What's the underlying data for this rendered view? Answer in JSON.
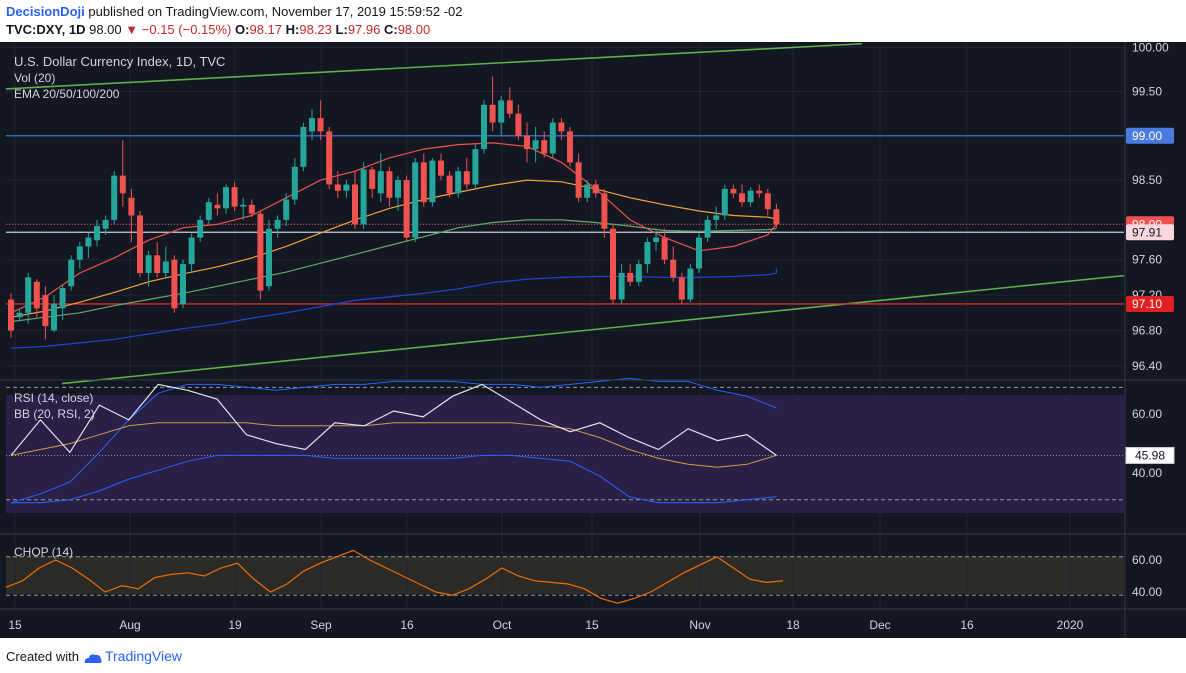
{
  "header": {
    "brand": "DecisionDoji",
    "published": "published on TradingView.com, November 17, 2019 15:59:52 -02",
    "symbol": "TVC:DXY, 1D",
    "last": "98.00",
    "change": "−0.15 (−0.15%)",
    "o_label": "O:",
    "o_value": "98.17",
    "h_label": "H:",
    "h_value": "98.23",
    "l_label": "L:",
    "l_value": "97.96",
    "c_label": "C:",
    "c_value": "98.00"
  },
  "legends": {
    "main": [
      "U.S. Dollar Currency Index, 1D, TVC",
      "Vol (20)",
      "EMA 20/50/100/200"
    ],
    "rsi": [
      "RSI (14, close)",
      "BB (20, RSI, 2)"
    ],
    "chop": [
      "CHOP (14)"
    ]
  },
  "footer": {
    "created_with": "Created with",
    "brand": "TradingView"
  },
  "colors": {
    "background": "#131722",
    "up": "#26a69a",
    "down": "#ef5350",
    "ema20": "#ef5350",
    "ema50": "#f2a33a",
    "ema100": "#64a86a",
    "ema200": "#2443d8",
    "trendline": "#5fb04c",
    "rsi": "#e0e3eb",
    "bb": "#2962ff",
    "bb_basis": "#c8a048",
    "chop": "#ef6c00",
    "price_line": "#4a7be0",
    "support": "#d32f2f"
  },
  "chart_data": [
    {
      "type": "candlestick",
      "title": "U.S. Dollar Currency Index, 1D, TVC",
      "x_ticks": [
        "15",
        "Aug",
        "19",
        "Sep",
        "16",
        "Oct",
        "15",
        "Nov",
        "18",
        "Dec",
        "16",
        "2020"
      ],
      "y_ticks": [
        "100.00",
        "99.50",
        "99.00",
        "98.50",
        "98.00",
        "97.60",
        "97.20",
        "96.80",
        "96.40"
      ],
      "ylim": [
        96.2,
        100.1
      ],
      "price_labels": [
        {
          "text": "99.00",
          "value": 99.0,
          "kind": "line"
        },
        {
          "text": "98.00",
          "value": 98.0,
          "kind": "current"
        },
        {
          "text": "97.91",
          "value": 97.91,
          "kind": "marker"
        },
        {
          "text": "97.10",
          "value": 97.1,
          "kind": "support"
        }
      ],
      "ohlc": [
        {
          "date": "2019-07-15",
          "o": 97.15,
          "h": 97.22,
          "l": 96.72,
          "c": 96.8
        },
        {
          "date": "2019-07-16",
          "o": 96.95,
          "h": 97.05,
          "l": 96.9,
          "c": 97.0
        },
        {
          "date": "2019-07-17",
          "o": 97.0,
          "h": 97.45,
          "l": 96.88,
          "c": 97.4
        },
        {
          "date": "2019-07-18",
          "o": 97.35,
          "h": 97.38,
          "l": 96.95,
          "c": 97.05
        },
        {
          "date": "2019-07-19",
          "o": 97.2,
          "h": 97.3,
          "l": 96.7,
          "c": 96.85
        },
        {
          "date": "2019-07-22",
          "o": 96.8,
          "h": 97.2,
          "l": 96.78,
          "c": 97.1
        },
        {
          "date": "2019-07-23",
          "o": 97.05,
          "h": 97.32,
          "l": 96.92,
          "c": 97.28
        },
        {
          "date": "2019-07-24",
          "o": 97.3,
          "h": 97.65,
          "l": 97.25,
          "c": 97.6
        },
        {
          "date": "2019-07-25",
          "o": 97.6,
          "h": 97.8,
          "l": 97.5,
          "c": 97.75
        },
        {
          "date": "2019-07-26",
          "o": 97.75,
          "h": 97.9,
          "l": 97.62,
          "c": 97.85
        },
        {
          "date": "2019-07-29",
          "o": 97.82,
          "h": 98.05,
          "l": 97.75,
          "c": 97.98
        },
        {
          "date": "2019-07-30",
          "o": 97.95,
          "h": 98.1,
          "l": 97.88,
          "c": 98.05
        },
        {
          "date": "2019-07-31",
          "o": 98.05,
          "h": 98.6,
          "l": 98.0,
          "c": 98.55
        },
        {
          "date": "2019-08-01",
          "o": 98.55,
          "h": 98.95,
          "l": 98.2,
          "c": 98.35
        },
        {
          "date": "2019-08-02",
          "o": 98.3,
          "h": 98.4,
          "l": 97.8,
          "c": 98.1
        },
        {
          "date": "2019-08-05",
          "o": 98.1,
          "h": 98.15,
          "l": 97.4,
          "c": 97.45
        },
        {
          "date": "2019-08-06",
          "o": 97.45,
          "h": 97.7,
          "l": 97.3,
          "c": 97.65
        },
        {
          "date": "2019-08-07",
          "o": 97.65,
          "h": 97.8,
          "l": 97.4,
          "c": 97.45
        },
        {
          "date": "2019-08-08",
          "o": 97.45,
          "h": 97.75,
          "l": 97.4,
          "c": 97.58
        },
        {
          "date": "2019-08-09",
          "o": 97.6,
          "h": 97.65,
          "l": 97.0,
          "c": 97.05
        },
        {
          "date": "2019-08-12",
          "o": 97.1,
          "h": 97.6,
          "l": 97.05,
          "c": 97.55
        },
        {
          "date": "2019-08-13",
          "o": 97.55,
          "h": 97.9,
          "l": 97.45,
          "c": 97.85
        },
        {
          "date": "2019-08-14",
          "o": 97.85,
          "h": 98.1,
          "l": 97.8,
          "c": 98.05
        },
        {
          "date": "2019-08-15",
          "o": 98.05,
          "h": 98.3,
          "l": 98.0,
          "c": 98.25
        },
        {
          "date": "2019-08-16",
          "o": 98.22,
          "h": 98.35,
          "l": 98.1,
          "c": 98.18
        },
        {
          "date": "2019-08-19",
          "o": 98.18,
          "h": 98.45,
          "l": 98.12,
          "c": 98.42
        },
        {
          "date": "2019-08-20",
          "o": 98.42,
          "h": 98.48,
          "l": 98.15,
          "c": 98.2
        },
        {
          "date": "2019-08-21",
          "o": 98.2,
          "h": 98.3,
          "l": 98.05,
          "c": 98.22
        },
        {
          "date": "2019-08-22",
          "o": 98.22,
          "h": 98.28,
          "l": 98.08,
          "c": 98.12
        },
        {
          "date": "2019-08-23",
          "o": 98.12,
          "h": 98.15,
          "l": 97.15,
          "c": 97.25
        },
        {
          "date": "2019-08-26",
          "o": 97.3,
          "h": 98.05,
          "l": 97.25,
          "c": 97.95
        },
        {
          "date": "2019-08-27",
          "o": 97.95,
          "h": 98.1,
          "l": 97.85,
          "c": 98.05
        },
        {
          "date": "2019-08-28",
          "o": 98.05,
          "h": 98.35,
          "l": 97.98,
          "c": 98.28
        },
        {
          "date": "2019-08-29",
          "o": 98.28,
          "h": 98.75,
          "l": 98.22,
          "c": 98.65
        },
        {
          "date": "2019-08-30",
          "o": 98.65,
          "h": 99.15,
          "l": 98.6,
          "c": 99.1
        },
        {
          "date": "2019-09-02",
          "o": 99.05,
          "h": 99.3,
          "l": 98.95,
          "c": 99.2
        },
        {
          "date": "2019-09-03",
          "o": 99.2,
          "h": 99.4,
          "l": 98.95,
          "c": 99.05
        },
        {
          "date": "2019-09-04",
          "o": 99.05,
          "h": 99.1,
          "l": 98.4,
          "c": 98.45
        },
        {
          "date": "2019-09-05",
          "o": 98.45,
          "h": 98.6,
          "l": 98.3,
          "c": 98.38
        },
        {
          "date": "2019-09-06",
          "o": 98.38,
          "h": 98.5,
          "l": 98.3,
          "c": 98.45
        },
        {
          "date": "2019-09-09",
          "o": 98.45,
          "h": 98.6,
          "l": 97.95,
          "c": 98.0
        },
        {
          "date": "2019-09-10",
          "o": 98.0,
          "h": 98.7,
          "l": 97.95,
          "c": 98.62
        },
        {
          "date": "2019-09-11",
          "o": 98.62,
          "h": 98.65,
          "l": 98.3,
          "c": 98.4
        },
        {
          "date": "2019-09-12",
          "o": 98.35,
          "h": 98.8,
          "l": 98.25,
          "c": 98.6
        },
        {
          "date": "2019-09-13",
          "o": 98.6,
          "h": 98.65,
          "l": 98.2,
          "c": 98.3
        },
        {
          "date": "2019-09-16",
          "o": 98.3,
          "h": 98.55,
          "l": 98.15,
          "c": 98.5
        },
        {
          "date": "2019-09-17",
          "o": 98.5,
          "h": 98.55,
          "l": 97.8,
          "c": 97.85
        },
        {
          "date": "2019-09-18",
          "o": 97.85,
          "h": 98.75,
          "l": 97.8,
          "c": 98.7
        },
        {
          "date": "2019-09-19",
          "o": 98.7,
          "h": 98.8,
          "l": 98.2,
          "c": 98.25
        },
        {
          "date": "2019-09-20",
          "o": 98.25,
          "h": 98.75,
          "l": 98.2,
          "c": 98.72
        },
        {
          "date": "2019-09-23",
          "o": 98.72,
          "h": 98.8,
          "l": 98.5,
          "c": 98.55
        },
        {
          "date": "2019-09-24",
          "o": 98.55,
          "h": 98.6,
          "l": 98.3,
          "c": 98.35
        },
        {
          "date": "2019-09-25",
          "o": 98.35,
          "h": 98.65,
          "l": 98.3,
          "c": 98.6
        },
        {
          "date": "2019-09-26",
          "o": 98.6,
          "h": 98.75,
          "l": 98.4,
          "c": 98.45
        },
        {
          "date": "2019-09-27",
          "o": 98.45,
          "h": 98.9,
          "l": 98.4,
          "c": 98.85
        },
        {
          "date": "2019-09-30",
          "o": 98.85,
          "h": 99.4,
          "l": 98.8,
          "c": 99.35
        },
        {
          "date": "2019-10-01",
          "o": 99.35,
          "h": 99.67,
          "l": 99.05,
          "c": 99.15
        },
        {
          "date": "2019-10-02",
          "o": 99.15,
          "h": 99.45,
          "l": 99.0,
          "c": 99.4
        },
        {
          "date": "2019-10-03",
          "o": 99.4,
          "h": 99.55,
          "l": 99.2,
          "c": 99.25
        },
        {
          "date": "2019-10-04",
          "o": 99.25,
          "h": 99.35,
          "l": 98.95,
          "c": 99.0
        },
        {
          "date": "2019-10-07",
          "o": 99.0,
          "h": 99.15,
          "l": 98.7,
          "c": 98.85
        },
        {
          "date": "2019-10-08",
          "o": 98.85,
          "h": 99.1,
          "l": 98.7,
          "c": 98.95
        },
        {
          "date": "2019-10-09",
          "o": 98.95,
          "h": 99.05,
          "l": 98.75,
          "c": 98.8
        },
        {
          "date": "2019-10-10",
          "o": 98.8,
          "h": 99.2,
          "l": 98.75,
          "c": 99.15
        },
        {
          "date": "2019-10-11",
          "o": 99.15,
          "h": 99.2,
          "l": 98.95,
          "c": 99.05
        },
        {
          "date": "2019-10-14",
          "o": 99.05,
          "h": 99.1,
          "l": 98.65,
          "c": 98.7
        },
        {
          "date": "2019-10-15",
          "o": 98.7,
          "h": 98.8,
          "l": 98.25,
          "c": 98.3
        },
        {
          "date": "2019-10-16",
          "o": 98.3,
          "h": 98.5,
          "l": 98.25,
          "c": 98.45
        },
        {
          "date": "2019-10-17",
          "o": 98.45,
          "h": 98.5,
          "l": 98.3,
          "c": 98.35
        },
        {
          "date": "2019-10-18",
          "o": 98.35,
          "h": 98.4,
          "l": 97.85,
          "c": 97.95
        },
        {
          "date": "2019-10-21",
          "o": 97.95,
          "h": 98.0,
          "l": 97.1,
          "c": 97.15
        },
        {
          "date": "2019-10-22",
          "o": 97.15,
          "h": 97.55,
          "l": 97.1,
          "c": 97.45
        },
        {
          "date": "2019-10-23",
          "o": 97.45,
          "h": 97.55,
          "l": 97.3,
          "c": 97.35
        },
        {
          "date": "2019-10-24",
          "o": 97.35,
          "h": 97.6,
          "l": 97.3,
          "c": 97.55
        },
        {
          "date": "2019-10-25",
          "o": 97.55,
          "h": 97.85,
          "l": 97.45,
          "c": 97.8
        },
        {
          "date": "2019-10-28",
          "o": 97.8,
          "h": 97.95,
          "l": 97.7,
          "c": 97.85
        },
        {
          "date": "2019-10-29",
          "o": 97.85,
          "h": 97.95,
          "l": 97.55,
          "c": 97.6
        },
        {
          "date": "2019-10-30",
          "o": 97.6,
          "h": 97.75,
          "l": 97.35,
          "c": 97.4
        },
        {
          "date": "2019-10-31",
          "o": 97.4,
          "h": 97.45,
          "l": 97.1,
          "c": 97.15
        },
        {
          "date": "2019-11-01",
          "o": 97.15,
          "h": 97.55,
          "l": 97.12,
          "c": 97.5
        },
        {
          "date": "2019-11-04",
          "o": 97.5,
          "h": 97.9,
          "l": 97.45,
          "c": 97.85
        },
        {
          "date": "2019-11-05",
          "o": 97.85,
          "h": 98.1,
          "l": 97.8,
          "c": 98.05
        },
        {
          "date": "2019-11-06",
          "o": 98.05,
          "h": 98.2,
          "l": 97.95,
          "c": 98.1
        },
        {
          "date": "2019-11-07",
          "o": 98.1,
          "h": 98.45,
          "l": 98.05,
          "c": 98.4
        },
        {
          "date": "2019-11-08",
          "o": 98.4,
          "h": 98.45,
          "l": 98.3,
          "c": 98.35
        },
        {
          "date": "2019-11-11",
          "o": 98.35,
          "h": 98.45,
          "l": 98.2,
          "c": 98.25
        },
        {
          "date": "2019-11-12",
          "o": 98.25,
          "h": 98.42,
          "l": 98.2,
          "c": 98.38
        },
        {
          "date": "2019-11-13",
          "o": 98.38,
          "h": 98.45,
          "l": 98.3,
          "c": 98.35
        },
        {
          "date": "2019-11-14",
          "o": 98.35,
          "h": 98.4,
          "l": 98.1,
          "c": 98.17
        },
        {
          "date": "2019-11-15",
          "o": 98.17,
          "h": 98.23,
          "l": 97.96,
          "c": 98.0
        }
      ],
      "ema20": [
        97.0,
        97.18,
        97.45,
        97.62,
        97.82,
        97.96,
        98.0,
        98.1,
        98.3,
        98.5,
        98.6,
        98.75,
        98.85,
        98.9,
        98.92,
        98.88,
        98.7,
        98.4,
        98.05,
        97.85,
        97.7,
        97.75,
        97.88,
        98.0,
        98.02,
        98.05,
        98.0
      ],
      "ema50": [
        96.95,
        97.02,
        97.12,
        97.23,
        97.35,
        97.44,
        97.52,
        97.62,
        97.75,
        97.9,
        98.05,
        98.18,
        98.28,
        98.36,
        98.44,
        98.5,
        98.48,
        98.4,
        98.3,
        98.22,
        98.15,
        98.1,
        98.08,
        98.06,
        98.07,
        98.09,
        98.09
      ],
      "ema100": [
        96.9,
        96.95,
        97.0,
        97.08,
        97.15,
        97.22,
        97.3,
        97.38,
        97.46,
        97.56,
        97.66,
        97.76,
        97.86,
        97.96,
        98.02,
        98.05,
        98.05,
        98.02,
        97.98,
        97.93,
        97.92,
        97.93,
        97.94,
        97.95,
        97.95,
        97.95,
        97.95
      ],
      "ema200": [
        96.6,
        96.62,
        96.66,
        96.7,
        96.76,
        96.82,
        96.87,
        96.94,
        97.0,
        97.07,
        97.14,
        97.18,
        97.22,
        97.27,
        97.34,
        97.38,
        97.4,
        97.41,
        97.41,
        97.4,
        97.4,
        97.41,
        97.43,
        97.45,
        97.46,
        97.48,
        97.5
      ]
    },
    {
      "type": "line",
      "title": "RSI (14, close)",
      "bands": "BB (20, RSI, 2)",
      "y_ticks": [
        "60.00",
        "40.00"
      ],
      "ylim": [
        25,
        75
      ],
      "last_label": "45.98",
      "rsi": [
        46,
        58,
        47,
        63,
        58,
        70,
        68,
        65,
        53,
        50,
        48,
        57,
        56,
        61,
        59,
        66,
        70,
        64,
        58,
        54,
        57,
        52,
        48,
        55,
        51,
        53,
        46
      ],
      "bb_upper": [
        30,
        33,
        37,
        47,
        58,
        67,
        70,
        70,
        69,
        68,
        69,
        70,
        70,
        71,
        71,
        71,
        70,
        70,
        69,
        70,
        71,
        72,
        71,
        71,
        68,
        66,
        62
      ],
      "bb_lower": [
        30,
        30,
        31,
        34,
        38,
        41,
        44,
        46,
        46,
        46,
        46,
        45,
        45,
        45,
        45,
        45,
        46,
        46,
        45,
        44,
        39,
        32,
        30,
        30,
        30,
        31,
        32
      ],
      "bb_basis": [
        46,
        48,
        50,
        53,
        56,
        57,
        57,
        57,
        57,
        56,
        56,
        56,
        56,
        57,
        57,
        57,
        57,
        57,
        56,
        55,
        52,
        48,
        45,
        43,
        42,
        43,
        46
      ]
    },
    {
      "type": "line",
      "title": "CHOP (14)",
      "y_ticks": [
        "60.00",
        "40.00"
      ],
      "ylim": [
        25,
        72
      ],
      "chop": [
        43,
        47,
        55,
        60,
        55,
        48,
        40,
        44,
        42,
        49,
        51,
        52,
        50,
        55,
        58,
        48,
        40,
        45,
        53,
        58,
        62,
        66,
        60,
        55,
        50,
        45,
        40,
        38,
        42,
        48,
        55,
        50,
        47,
        46,
        45,
        42,
        36,
        33,
        36,
        40,
        46,
        52,
        57,
        62,
        55,
        48,
        46,
        47
      ],
      "guides": [
        62,
        38
      ]
    }
  ]
}
